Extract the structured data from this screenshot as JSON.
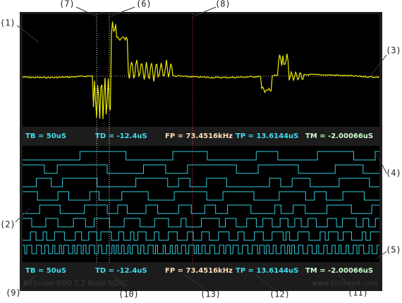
{
  "callouts": [
    "(1)",
    "(2)",
    "(3)",
    "(4)",
    "(5)",
    "(6)",
    "(7)",
    "(8)",
    "(9)",
    "(10)",
    "(11)",
    "(12)",
    "(13)"
  ],
  "status_top": {
    "tb": "TB = 50uS",
    "td": "TD = -12.4uS",
    "fp": "FP = 73.4516kHz",
    "tp": "TP = 13.6144uS",
    "tm": "TM = -2.00066uS"
  },
  "status_bottom": {
    "tb": "TB = 50uS",
    "td": "TD = -12.4uS",
    "fp": "FP = 73.4516kHz",
    "tp": "TP = 13.6144uS",
    "tm": "TM = -2.00066uS"
  },
  "footer": {
    "build": "BitScope DSO 2.2 Build 9J20C",
    "url": "www.bitscope.com"
  }
}
